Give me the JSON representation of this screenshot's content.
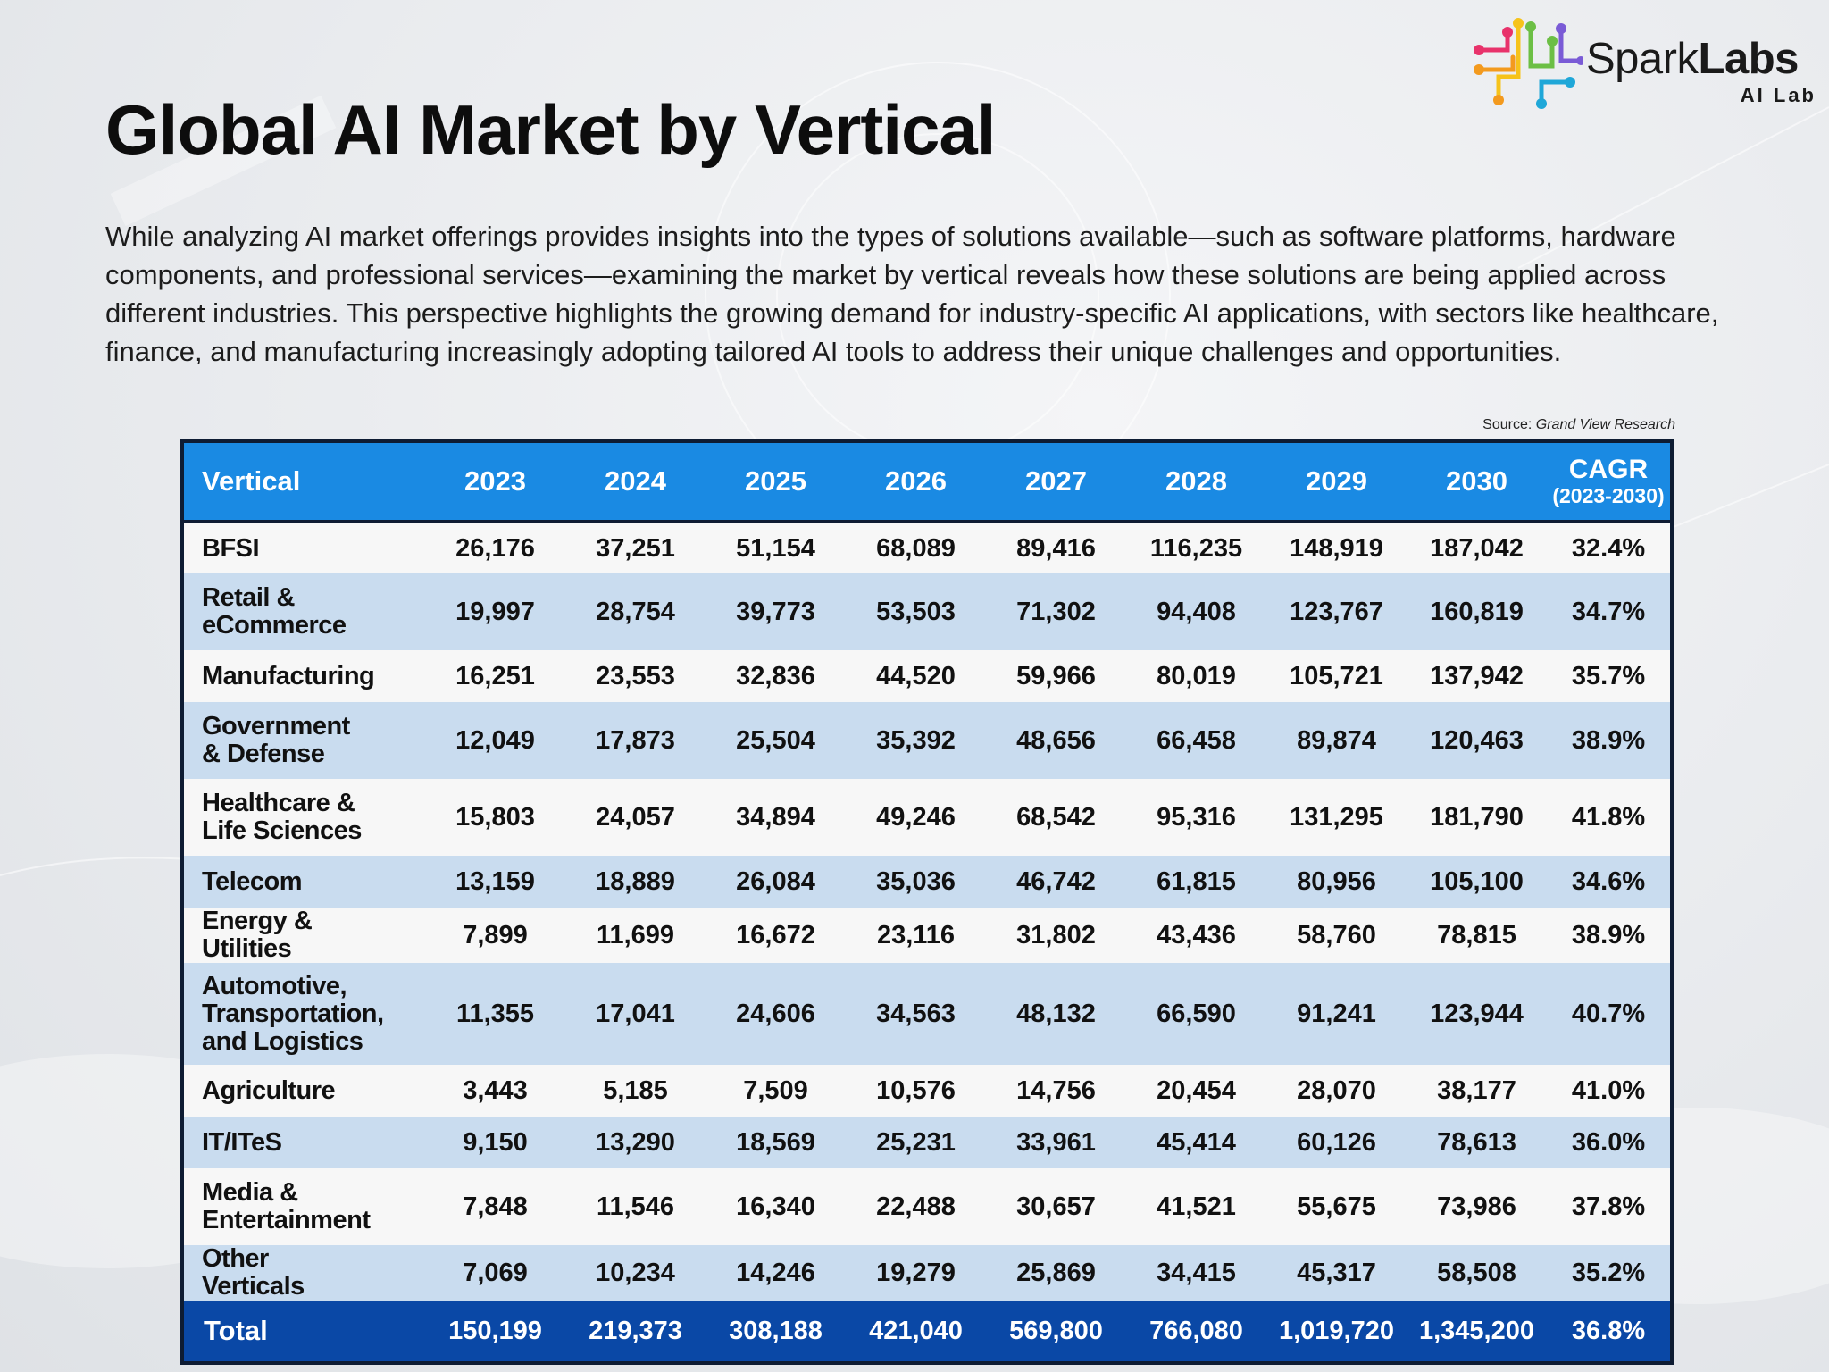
{
  "logo": {
    "brand_regular": "Spark",
    "brand_bold": "Labs",
    "subtitle": "AI Lab",
    "mark_colors": [
      "#e8326b",
      "#f39a1e",
      "#f6c31b",
      "#6cbf45",
      "#1fa7d8",
      "#7a5bd6"
    ]
  },
  "title": "Global AI Market by Vertical",
  "intro": "While analyzing AI market offerings provides insights into the types of solutions available—such as software platforms, hardware components, and professional services—examining the market by vertical reveals how these solutions are being applied across different industries. This perspective highlights the growing demand for industry-specific AI applications, with sectors like healthcare, finance, and manufacturing increasingly adopting tailored AI tools to address their unique challenges and opportunities.",
  "source": {
    "label": "Source:",
    "name": "Grand View Research"
  },
  "table": {
    "header": {
      "vertical": "Vertical",
      "years": [
        "2023",
        "2024",
        "2025",
        "2026",
        "2027",
        "2028",
        "2029",
        "2030"
      ],
      "cagr": "CAGR",
      "cagr_period": "(2023-2030)"
    },
    "rows": [
      {
        "vertical": "BFSI",
        "values": [
          "26,176",
          "37,251",
          "51,154",
          "68,089",
          "89,416",
          "116,235",
          "148,919",
          "187,042"
        ],
        "cagr": "32.4%"
      },
      {
        "vertical": "Retail & eCommerce",
        "values": [
          "19,997",
          "28,754",
          "39,773",
          "53,503",
          "71,302",
          "94,408",
          "123,767",
          "160,819"
        ],
        "cagr": "34.7%"
      },
      {
        "vertical": "Manufacturing",
        "values": [
          "16,251",
          "23,553",
          "32,836",
          "44,520",
          "59,966",
          "80,019",
          "105,721",
          "137,942"
        ],
        "cagr": "35.7%"
      },
      {
        "vertical": "Government & Defense",
        "values": [
          "12,049",
          "17,873",
          "25,504",
          "35,392",
          "48,656",
          "66,458",
          "89,874",
          "120,463"
        ],
        "cagr": "38.9%"
      },
      {
        "vertical": "Healthcare & Life Sciences",
        "values": [
          "15,803",
          "24,057",
          "34,894",
          "49,246",
          "68,542",
          "95,316",
          "131,295",
          "181,790"
        ],
        "cagr": "41.8%"
      },
      {
        "vertical": "Telecom",
        "values": [
          "13,159",
          "18,889",
          "26,084",
          "35,036",
          "46,742",
          "61,815",
          "80,956",
          "105,100"
        ],
        "cagr": "34.6%"
      },
      {
        "vertical": "Energy & Utilities",
        "values": [
          "7,899",
          "11,699",
          "16,672",
          "23,116",
          "31,802",
          "43,436",
          "58,760",
          "78,815"
        ],
        "cagr": "38.9%"
      },
      {
        "vertical": "Automotive, Transportation, and Logistics",
        "values": [
          "11,355",
          "17,041",
          "24,606",
          "34,563",
          "48,132",
          "66,590",
          "91,241",
          "123,944"
        ],
        "cagr": "40.7%"
      },
      {
        "vertical": "Agriculture",
        "values": [
          "3,443",
          "5,185",
          "7,509",
          "10,576",
          "14,756",
          "20,454",
          "28,070",
          "38,177"
        ],
        "cagr": "41.0%"
      },
      {
        "vertical": "IT/ITeS",
        "values": [
          "9,150",
          "13,290",
          "18,569",
          "25,231",
          "33,961",
          "45,414",
          "60,126",
          "78,613"
        ],
        "cagr": "36.0%"
      },
      {
        "vertical": "Media & Entertainment",
        "values": [
          "7,848",
          "11,546",
          "16,340",
          "22,488",
          "30,657",
          "41,521",
          "55,675",
          "73,986"
        ],
        "cagr": "37.8%"
      },
      {
        "vertical": "Other Verticals",
        "values": [
          "7,069",
          "10,234",
          "14,246",
          "19,279",
          "25,869",
          "34,415",
          "45,317",
          "58,508"
        ],
        "cagr": "35.2%"
      }
    ],
    "total": {
      "label": "Total",
      "values": [
        "150,199",
        "219,373",
        "308,188",
        "421,040",
        "569,800",
        "766,080",
        "1,019,720",
        "1,345,200"
      ],
      "cagr": "36.8%"
    },
    "colors": {
      "header_bg": "#1a8ae3",
      "row_light": "#f7f7f7",
      "row_blue": "#c9dcef",
      "total_bg": "#0a48a6",
      "border": "#0e1c33"
    }
  }
}
